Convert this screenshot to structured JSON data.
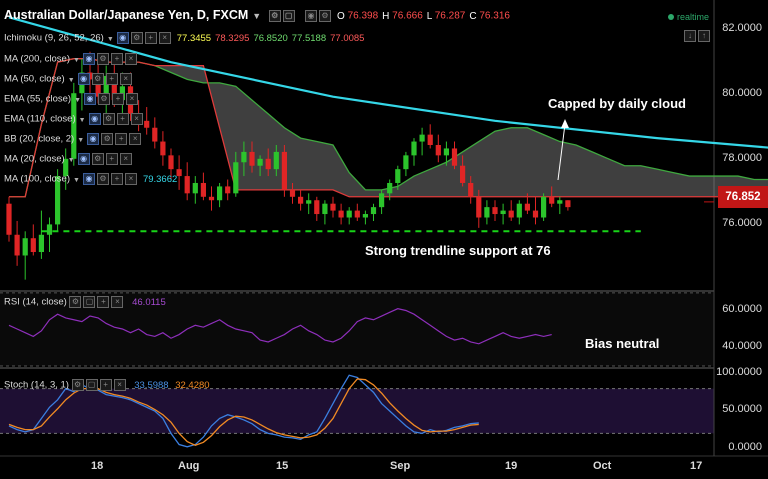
{
  "header": {
    "title": "Australian Dollar/Japanese Yen, D, FXCM",
    "ohlc": [
      {
        "k": "O",
        "v": "76.398"
      },
      {
        "k": "H",
        "v": "76.666"
      },
      {
        "k": "L",
        "v": "76.287"
      },
      {
        "k": "C",
        "v": "76.316"
      }
    ],
    "realtime_label": "realtime"
  },
  "indicators": [
    {
      "label": "Ichimoku (9, 26, 52, 26)",
      "values": [
        {
          "v": "77.3455",
          "color": "#ffff55"
        },
        {
          "v": "78.3295",
          "color": "#ff5a5a"
        },
        {
          "v": "76.8520",
          "color": "#6fdc6f"
        },
        {
          "v": "77.5188",
          "color": "#6fdc6f"
        },
        {
          "v": "77.0085",
          "color": "#ff5a5a"
        }
      ]
    },
    {
      "label": "MA (200, close)",
      "values": []
    },
    {
      "label": "MA (50, close)",
      "values": []
    },
    {
      "label": "EMA (55, close)",
      "values": []
    },
    {
      "label": "EMA (110, close)",
      "values": []
    },
    {
      "label": "BB (20, close, 2)",
      "values": []
    },
    {
      "label": "MA (20, close)",
      "values": []
    },
    {
      "label": "MA (100, close)",
      "values": [
        {
          "v": "79.3662",
          "color": "#35d7e8"
        }
      ]
    }
  ],
  "price_axis": {
    "ticks": [
      "82.0000",
      "80.0000",
      "78.0000",
      "76.0000"
    ],
    "last_price": "76.852"
  },
  "rsi": {
    "label": "RSI (14, close)",
    "value": "46.0115",
    "ticks": [
      "60.0000",
      "40.0000"
    ]
  },
  "stoch": {
    "label": "Stoch (14, 3, 1)",
    "k_value": "33.5988",
    "d_value": "32.4280",
    "ticks": [
      "100.0000",
      "50.0000",
      "0.0000"
    ]
  },
  "annotations": {
    "cloud": "Capped by daily cloud",
    "trend": "Strong trendline support at 76",
    "bias": "Bias neutral"
  },
  "x_axis": [
    "18",
    "Aug",
    "15",
    "Sep",
    "19",
    "Oct",
    "17"
  ],
  "chart_data": {
    "type": "candlestick",
    "title": "Australian Dollar/Japanese Yen, D, FXCM",
    "y_range": [
      74.3,
      82.7
    ],
    "candles": [
      [
        76.8,
        77.0,
        75.7,
        75.9
      ],
      [
        75.9,
        76.3,
        75.0,
        75.3
      ],
      [
        75.3,
        76.0,
        74.6,
        75.8
      ],
      [
        75.8,
        76.2,
        75.3,
        75.4
      ],
      [
        75.4,
        76.6,
        75.2,
        75.9
      ],
      [
        75.9,
        76.4,
        75.4,
        76.2
      ],
      [
        76.2,
        77.8,
        76.0,
        77.6
      ],
      [
        77.6,
        78.4,
        77.2,
        78.1
      ],
      [
        78.1,
        80.3,
        77.9,
        80.0
      ],
      [
        80.0,
        81.0,
        79.5,
        80.6
      ],
      [
        80.6,
        81.2,
        79.9,
        80.4
      ],
      [
        80.4,
        80.9,
        79.7,
        79.9
      ],
      [
        79.9,
        80.8,
        79.4,
        80.5
      ],
      [
        80.5,
        80.9,
        79.6,
        79.8
      ],
      [
        79.8,
        80.6,
        79.4,
        80.2
      ],
      [
        80.2,
        80.6,
        79.2,
        79.4
      ],
      [
        79.4,
        79.8,
        78.9,
        79.2
      ],
      [
        79.2,
        79.6,
        78.8,
        79.0
      ],
      [
        79.0,
        79.3,
        78.4,
        78.6
      ],
      [
        78.6,
        78.9,
        77.9,
        78.2
      ],
      [
        78.2,
        78.4,
        77.5,
        77.8
      ],
      [
        77.8,
        78.2,
        77.2,
        77.6
      ],
      [
        77.6,
        78.0,
        76.9,
        77.1
      ],
      [
        77.1,
        77.6,
        76.8,
        77.4
      ],
      [
        77.4,
        77.7,
        76.9,
        77.0
      ],
      [
        77.0,
        77.3,
        76.6,
        76.9
      ],
      [
        76.9,
        77.4,
        76.7,
        77.3
      ],
      [
        77.3,
        77.5,
        76.9,
        77.1
      ],
      [
        77.1,
        78.3,
        77.0,
        78.0
      ],
      [
        78.0,
        78.6,
        77.6,
        78.3
      ],
      [
        78.3,
        78.6,
        77.7,
        77.9
      ],
      [
        77.9,
        78.2,
        77.6,
        78.1
      ],
      [
        78.1,
        78.4,
        77.6,
        77.8
      ],
      [
        77.8,
        78.5,
        77.6,
        78.3
      ],
      [
        78.3,
        78.5,
        77.0,
        77.2
      ],
      [
        77.2,
        77.4,
        76.8,
        77.0
      ],
      [
        77.0,
        77.2,
        76.6,
        76.8
      ],
      [
        76.8,
        77.1,
        76.5,
        76.9
      ],
      [
        76.9,
        77.0,
        76.3,
        76.5
      ],
      [
        76.5,
        76.9,
        76.2,
        76.8
      ],
      [
        76.8,
        77.0,
        76.4,
        76.6
      ],
      [
        76.6,
        76.8,
        76.2,
        76.4
      ],
      [
        76.4,
        76.7,
        76.2,
        76.6
      ],
      [
        76.6,
        76.8,
        76.3,
        76.4
      ],
      [
        76.4,
        76.6,
        76.2,
        76.5
      ],
      [
        76.5,
        76.8,
        76.3,
        76.7
      ],
      [
        76.7,
        77.2,
        76.5,
        77.1
      ],
      [
        77.1,
        77.5,
        76.9,
        77.4
      ],
      [
        77.4,
        77.9,
        77.2,
        77.8
      ],
      [
        77.8,
        78.3,
        77.6,
        78.2
      ],
      [
        78.2,
        78.7,
        77.9,
        78.6
      ],
      [
        78.6,
        79.0,
        78.2,
        78.8
      ],
      [
        78.8,
        79.1,
        78.4,
        78.5
      ],
      [
        78.5,
        78.8,
        78.0,
        78.2
      ],
      [
        78.2,
        78.6,
        77.9,
        78.4
      ],
      [
        78.4,
        78.6,
        77.8,
        77.9
      ],
      [
        77.9,
        78.2,
        77.3,
        77.4
      ],
      [
        77.4,
        77.6,
        76.8,
        77.0
      ],
      [
        77.0,
        77.2,
        76.1,
        76.4
      ],
      [
        76.4,
        76.9,
        76.2,
        76.7
      ],
      [
        76.7,
        76.9,
        76.3,
        76.5
      ],
      [
        76.5,
        76.8,
        76.2,
        76.6
      ],
      [
        76.6,
        76.9,
        76.3,
        76.4
      ],
      [
        76.4,
        76.9,
        76.2,
        76.8
      ],
      [
        76.8,
        77.1,
        76.5,
        76.6
      ],
      [
        76.6,
        77.0,
        76.2,
        76.4
      ],
      [
        76.4,
        77.1,
        76.3,
        77.0
      ],
      [
        77.0,
        77.3,
        76.7,
        76.8
      ],
      [
        76.8,
        77.0,
        76.5,
        76.9
      ],
      [
        76.9,
        76.9,
        76.6,
        76.7
      ]
    ],
    "ma100": {
      "x": [
        0,
        20,
        40,
        60,
        80,
        100,
        105
      ],
      "y": [
        82.2,
        80.9,
        79.9,
        79.2,
        78.7,
        78.3,
        78.0
      ]
    },
    "cloud": {
      "x": [
        0,
        2,
        4,
        6,
        8,
        10,
        12,
        14,
        16,
        18,
        20,
        22,
        24,
        26,
        28,
        30,
        32,
        34,
        36,
        38,
        40,
        42,
        44,
        46,
        48,
        50,
        52,
        54,
        56,
        58,
        60,
        62,
        64,
        66,
        68,
        70,
        72,
        74,
        76,
        78,
        80,
        82,
        84,
        86,
        88,
        90,
        92,
        94,
        96,
        98,
        100
      ],
      "a": [
        77.0,
        77.0,
        79.1,
        80.9,
        81.0,
        81.0,
        80.9,
        80.9,
        80.9,
        80.8,
        80.6,
        80.4,
        80.3,
        80.3,
        80.2,
        79.8,
        79.4,
        79.0,
        78.7,
        78.6,
        78.5,
        77.7,
        77.2,
        77.2,
        77.3,
        77.6,
        77.8,
        78.0,
        78.3,
        78.6,
        78.9,
        79.0,
        79.0,
        78.8,
        78.6,
        78.5,
        78.3,
        78.1,
        77.9,
        77.9,
        77.8,
        77.7,
        77.6,
        77.6,
        77.6,
        77.6,
        77.5,
        77.5,
        77.9,
        78.0,
        77.7
      ],
      "b": [
        77.0,
        77.0,
        79.1,
        80.9,
        81.0,
        81.0,
        80.9,
        80.9,
        80.9,
        80.8,
        80.8,
        80.8,
        80.8,
        79.0,
        77.2,
        77.2,
        77.2,
        77.2,
        77.2,
        77.2,
        77.2,
        77.0,
        77.0,
        77.0,
        77.0,
        77.0,
        77.0,
        77.0,
        77.0,
        77.0,
        77.0,
        77.0,
        77.0,
        77.0,
        77.0,
        77.0,
        77.0,
        77.0,
        77.0,
        77.0,
        77.0,
        77.0,
        77.0,
        77.0,
        77.0,
        77.0,
        77.0,
        77.0,
        78.0,
        78.0,
        78.0
      ]
    },
    "trendline": {
      "from": [
        4,
        76.0
      ],
      "to": [
        78,
        76.0
      ]
    },
    "rsi": {
      "y_range": [
        30,
        70
      ],
      "values": [
        52,
        50,
        48,
        46,
        49,
        55,
        58,
        56,
        55,
        54,
        57,
        56,
        53,
        51,
        50,
        48,
        50,
        47,
        46,
        48,
        45,
        47,
        50,
        52,
        51,
        53,
        55,
        52,
        50,
        49,
        48,
        44,
        43,
        45,
        47,
        50,
        52,
        49,
        47,
        44,
        43,
        45,
        49,
        54,
        56,
        55,
        57,
        59,
        61,
        60,
        58,
        55,
        52,
        49,
        46,
        44,
        45,
        43,
        42,
        44,
        46,
        48,
        46,
        45,
        46,
        47,
        46,
        47
      ]
    },
    "stoch": {
      "y_range": [
        -5,
        105
      ],
      "k": [
        30,
        25,
        22,
        25,
        40,
        55,
        65,
        80,
        76,
        85,
        80,
        78,
        72,
        70,
        68,
        65,
        60,
        55,
        50,
        40,
        20,
        5,
        2,
        5,
        15,
        30,
        40,
        45,
        42,
        38,
        33,
        25,
        20,
        18,
        15,
        14,
        12,
        18,
        22,
        40,
        60,
        80,
        98,
        95,
        85,
        75,
        60,
        50,
        40,
        30,
        22,
        20,
        25,
        22,
        24,
        28,
        30,
        33,
        34
      ],
      "d": [
        32,
        28,
        25,
        25,
        30,
        42,
        53,
        65,
        74,
        80,
        80,
        80,
        75,
        72,
        70,
        67,
        62,
        58,
        52,
        45,
        35,
        20,
        9,
        4,
        8,
        17,
        29,
        38,
        43,
        42,
        38,
        32,
        26,
        21,
        18,
        16,
        14,
        15,
        18,
        27,
        40,
        60,
        80,
        93,
        92,
        85,
        74,
        61,
        50,
        40,
        31,
        24,
        22,
        23,
        23,
        25,
        28,
        31,
        32
      ]
    }
  }
}
